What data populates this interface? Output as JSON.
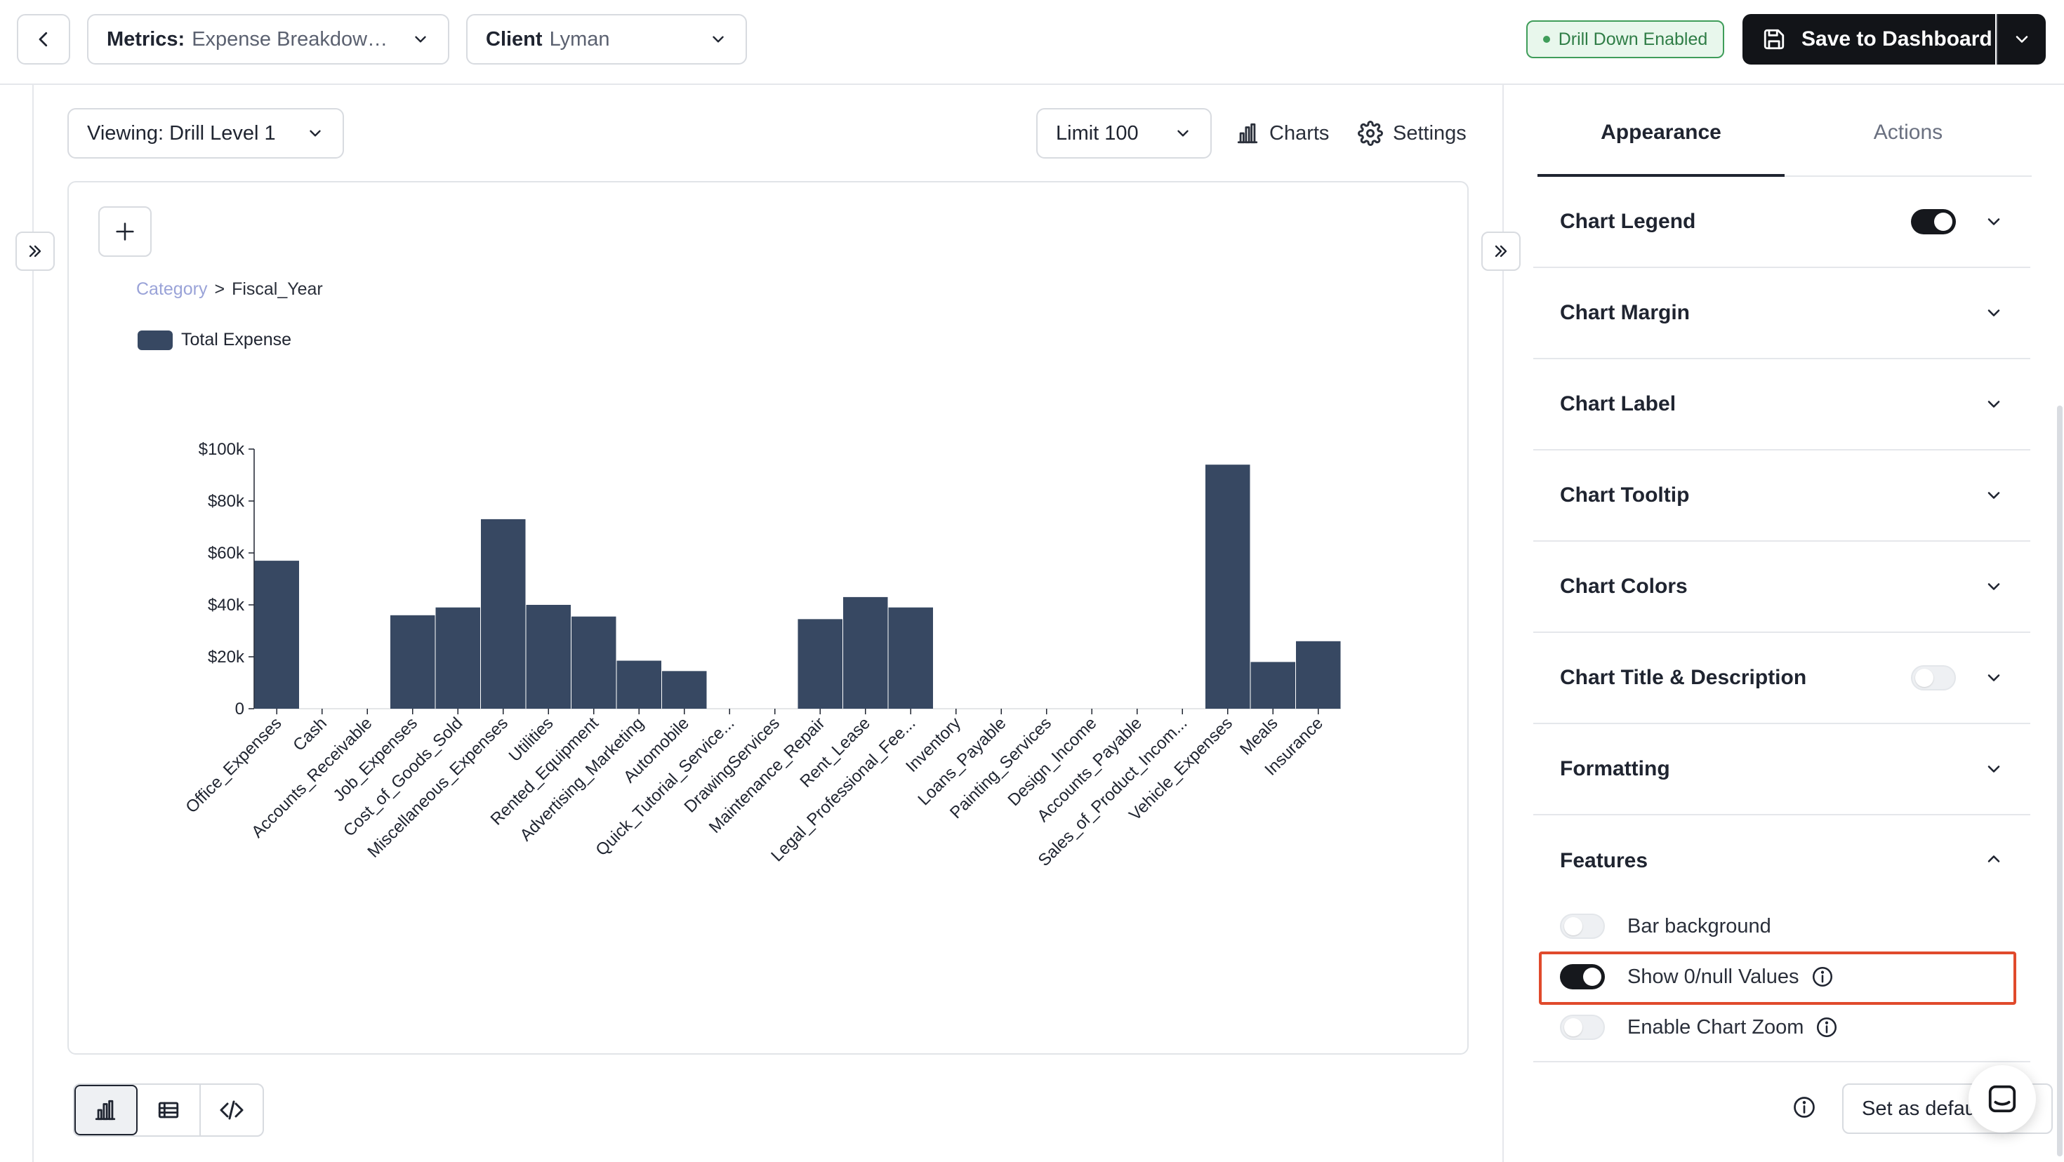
{
  "header": {
    "metrics_label": "Metrics:",
    "metrics_value": "Expense Breakdown by Category",
    "client_label": "Client",
    "client_value": "Lyman",
    "drill_badge": "Drill Down Enabled",
    "save_label": "Save to Dashboard"
  },
  "toolbar": {
    "viewing_label": "Viewing: Drill Level 1",
    "limit_label": "Limit 100",
    "charts_label": "Charts",
    "settings_label": "Settings"
  },
  "breadcrumb": {
    "parent": "Category",
    "separator": ">",
    "current": "Fiscal_Year"
  },
  "chart_data": {
    "type": "bar",
    "title": "",
    "xlabel": "",
    "ylabel": "",
    "ylim": [
      0,
      100000
    ],
    "y_ticks": [
      "0",
      "$20k",
      "$40k",
      "$60k",
      "$80k",
      "$100k"
    ],
    "legend_position": "top-left",
    "grid": false,
    "color": "#374862",
    "categories": [
      "Office_Expenses",
      "Cash",
      "Accounts_Receivable",
      "Job_Expenses",
      "Cost_of_Goods_Sold",
      "Miscellaneous_Expenses",
      "Utilities",
      "Rented_Equipment",
      "Advertising_Marketing",
      "Automobile",
      "Quick_Tutorial_Service...",
      "DrawingServices",
      "Maintenance_Repair",
      "Rent_Lease",
      "Legal_Professional_Fee...",
      "Inventory",
      "Loans_Payable",
      "Painting_Services",
      "Design_Income",
      "Accounts_Payable",
      "Sales_of_Product_Incom...",
      "Vehicle_Expenses",
      "Meals",
      "Insurance"
    ],
    "series": [
      {
        "name": "Total Expense",
        "values": [
          57000,
          0,
          0,
          36000,
          39000,
          73000,
          40000,
          35500,
          18500,
          14500,
          0,
          0,
          34500,
          43000,
          39000,
          0,
          0,
          0,
          0,
          0,
          0,
          94000,
          18000,
          26000
        ]
      }
    ]
  },
  "right_panel": {
    "tabs": [
      "Appearance",
      "Actions"
    ],
    "sections": {
      "legend": "Chart Legend",
      "margin": "Chart Margin",
      "label": "Chart Label",
      "tooltip": "Chart Tooltip",
      "colors": "Chart Colors",
      "title_desc": "Chart Title & Description",
      "formatting": "Formatting",
      "features": "Features"
    },
    "toggles": {
      "chart_legend": true,
      "chart_title_description": false,
      "bar_background": false,
      "show_null_values": true,
      "enable_chart_zoom": false
    },
    "features": {
      "bar_background": "Bar background",
      "show_null_values": "Show 0/null Values",
      "enable_chart_zoom": "Enable Chart Zoom"
    },
    "set_default_label": "Set as default"
  },
  "colors": {
    "accent_dark": "#16181d",
    "bar": "#374862",
    "badge_green": "#3f9d5a",
    "highlight": "#e04a2c",
    "breadcrumb_link": "#9aa3d8"
  }
}
